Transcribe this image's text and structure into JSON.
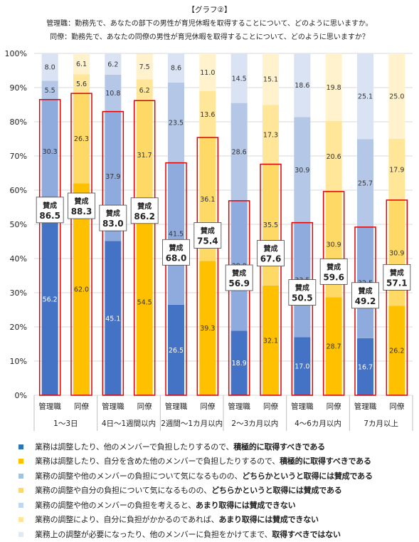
{
  "title": {
    "line1": "【グラフ②】",
    "line2": "管理職：勤務先で、あなたの部下の男性が育児休暇を取得することについて、どのように思いますか。",
    "line3": "同僚：勤務先で、あなたの同僚の男性が育児休暇を取得することについて、どのように思いますか？"
  },
  "chart_data": {
    "type": "bar",
    "stacked": true,
    "y_axis": {
      "min": 0,
      "max": 100,
      "step": 10,
      "tick_labels": [
        "0%",
        "10%",
        "20%",
        "30%",
        "40%",
        "50%",
        "60%",
        "70%",
        "80%",
        "90%",
        "100%"
      ]
    },
    "groups": [
      "1～3日",
      "4日～1週間以内",
      "2週間～1カ月以内",
      "2～3カ月以内",
      "4～6カ月以内",
      "7カ月以上"
    ],
    "bar_labels": [
      "管理職",
      "同僚"
    ],
    "bars": [
      {
        "group": 0,
        "role": "manager",
        "values": [
          56.2,
          30.3,
          5.5,
          8.0
        ],
        "approval": "86.5"
      },
      {
        "group": 0,
        "role": "colleague",
        "values": [
          62.0,
          26.3,
          5.6,
          6.1
        ],
        "approval": "88.3"
      },
      {
        "group": 1,
        "role": "manager",
        "values": [
          45.1,
          37.9,
          10.8,
          6.2
        ],
        "approval": "83.0"
      },
      {
        "group": 1,
        "role": "colleague",
        "values": [
          54.5,
          31.7,
          6.2,
          7.5
        ],
        "approval": "86.2"
      },
      {
        "group": 2,
        "role": "manager",
        "values": [
          26.5,
          41.5,
          23.5,
          8.6
        ],
        "approval": "68.0"
      },
      {
        "group": 2,
        "role": "colleague",
        "values": [
          39.3,
          36.1,
          13.6,
          11.0
        ],
        "approval": "75.4"
      },
      {
        "group": 3,
        "role": "manager",
        "values": [
          18.9,
          38.0,
          28.6,
          14.5
        ],
        "approval": "56.9"
      },
      {
        "group": 3,
        "role": "colleague",
        "values": [
          32.1,
          35.5,
          17.3,
          15.1
        ],
        "approval": "67.6"
      },
      {
        "group": 4,
        "role": "manager",
        "values": [
          17.0,
          33.5,
          30.9,
          18.6
        ],
        "approval": "50.5"
      },
      {
        "group": 4,
        "role": "colleague",
        "values": [
          28.7,
          30.9,
          20.6,
          19.8
        ],
        "approval": "59.6"
      },
      {
        "group": 5,
        "role": "manager",
        "values": [
          16.7,
          32.5,
          25.7,
          25.1
        ],
        "approval": "49.2"
      },
      {
        "group": 5,
        "role": "colleague",
        "values": [
          26.2,
          30.9,
          17.9,
          25.0
        ],
        "approval": "57.1"
      }
    ],
    "approval_label": "賛成",
    "colors": {
      "manager": [
        "#4472c4",
        "#8faadc",
        "#b4c7e7",
        "#dae3f3"
      ],
      "colleague": [
        "#ffc000",
        "#ffd966",
        "#ffe699",
        "#fff2cc"
      ],
      "outline": "#e00000",
      "grid": "#d9d9d9"
    }
  },
  "legend": [
    {
      "color": "#2e75b6",
      "normal": "業務は調整したり、他のメンバーで負担したりするので、",
      "bold": "積極的に取得すべきである"
    },
    {
      "color": "#ffc000",
      "normal": "業務は調整したり、自分を含めた他のメンバーで負担したりするので、",
      "bold": "積極的に取得すべきである"
    },
    {
      "color": "#9dc3e6",
      "normal": "業務の調整や他のメンバーの負担について気になるものの、",
      "bold": "どちらかというと取得には賛成である"
    },
    {
      "color": "#ffd966",
      "normal": "業務の調整や自分の負担について気になるものの、",
      "bold": "どちらかというと取得には賛成である"
    },
    {
      "color": "#bdd7ee",
      "normal": "業務の調整や他のメンバーの負担を考えると、",
      "bold": "あまり取得には賛成できない"
    },
    {
      "color": "#ffe699",
      "normal": "業務の調整により、自分に負担がかかるのであれば、",
      "bold": "あまり取得には賛成できない"
    },
    {
      "color": "#deebf7",
      "normal": "業務上の調整が必要になったり、他のメンバーに負担をかけてまで、",
      "bold": "取得すべきではない"
    }
  ]
}
